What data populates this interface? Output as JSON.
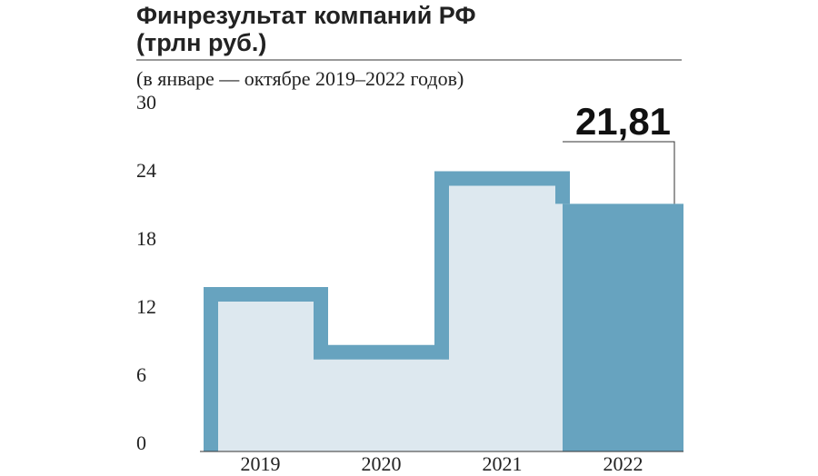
{
  "chart_data": {
    "type": "bar",
    "title": "Финрезультат компаний РФ",
    "title_line2": "(трлн руб.)",
    "subtitle": "(в январе — октябре 2019–2022 годов)",
    "categories": [
      "2019",
      "2020",
      "2021",
      "2022"
    ],
    "values": [
      13.2,
      8.1,
      23.4,
      21.81
    ],
    "value_labels": [
      null,
      null,
      null,
      "21,81"
    ],
    "colors": [
      "#dde8ef",
      "#dde8ef",
      "#dde8ef",
      "#67a3bf"
    ],
    "outline_color": "#67a3bf",
    "ylim": [
      0,
      30
    ],
    "yticks": [
      0,
      6,
      12,
      18,
      24,
      30
    ],
    "grid": false
  }
}
